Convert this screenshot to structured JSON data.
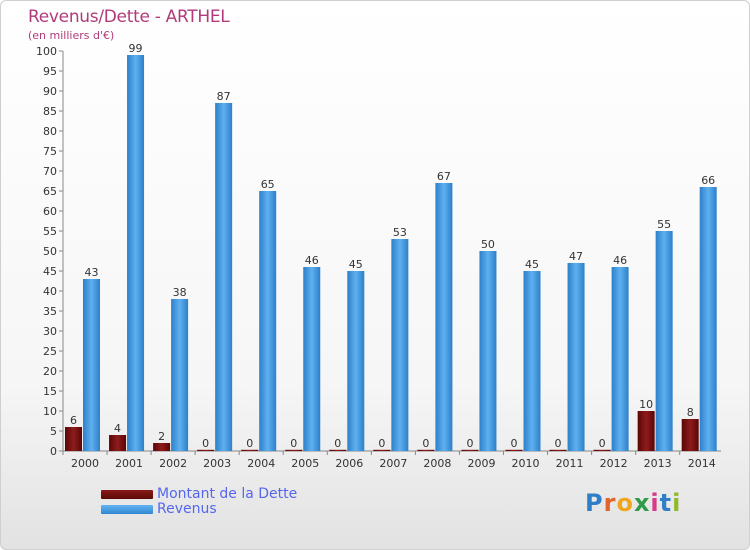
{
  "chart_data": {
    "type": "bar",
    "title": "Revenus/Dette - ARTHEL",
    "subtitle": "(en milliers d'€)",
    "categories": [
      "2000",
      "2001",
      "2002",
      "2003",
      "2004",
      "2005",
      "2006",
      "2007",
      "2008",
      "2009",
      "2010",
      "2011",
      "2012",
      "2013",
      "2014"
    ],
    "series": [
      {
        "name": "Montant de la Dette",
        "color": "#7a1010",
        "values": [
          6,
          4,
          2,
          0,
          0,
          0,
          0,
          0,
          0,
          0,
          0,
          0,
          0,
          10,
          8
        ]
      },
      {
        "name": "Revenus",
        "color": "#4aa0e6",
        "values": [
          43,
          99,
          38,
          87,
          65,
          46,
          45,
          53,
          67,
          50,
          45,
          47,
          46,
          55,
          66
        ]
      }
    ],
    "ylim": [
      0,
      100
    ],
    "yticks": [
      0,
      5,
      10,
      15,
      20,
      25,
      30,
      35,
      40,
      45,
      50,
      55,
      60,
      65,
      70,
      75,
      80,
      85,
      90,
      95,
      100
    ],
    "grid": false,
    "legend_position": "bottom-left"
  },
  "logo": {
    "text": "Proxiti",
    "letters": [
      "P",
      "r",
      "o",
      "x",
      "i",
      "t",
      "i"
    ]
  }
}
